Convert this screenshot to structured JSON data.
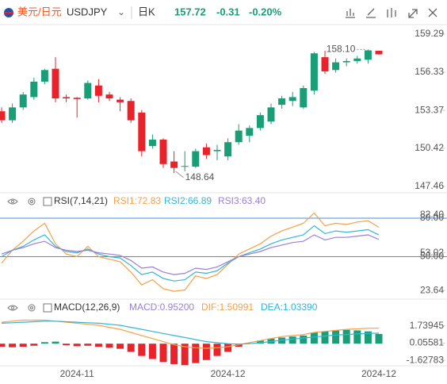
{
  "header": {
    "pair": "美元/日元",
    "symbol": "USDJPY",
    "period": "日K",
    "price": 157.72,
    "change": -0.31,
    "change_pct": "-0.20%"
  },
  "chart_data": [
    {
      "type": "candlestick",
      "categories": [
        null,
        null,
        null,
        null,
        null,
        null,
        null,
        "2024-11",
        null,
        null,
        null,
        null,
        null,
        null,
        null,
        null,
        null,
        null,
        null,
        null,
        null,
        "2024-12",
        null,
        null,
        null,
        null,
        null,
        null,
        null,
        null,
        null,
        null,
        null,
        null,
        null,
        "2024-12"
      ],
      "open": [
        153.3,
        152.6,
        153.6,
        154.4,
        155.6,
        156.6,
        154.4,
        154.35,
        154.3,
        155.3,
        154.6,
        154.2,
        154.1,
        153.2,
        150.6,
        151.1,
        149.4,
        149.0,
        149.0,
        150.5,
        150.2,
        149.8,
        150.9,
        151.4,
        152.0,
        152.5,
        153.8,
        154.1,
        153.6,
        154.9,
        157.5,
        156.5,
        157.1,
        157.2,
        157.3,
        158.0
      ],
      "high": [
        153.6,
        153.9,
        154.8,
        155.9,
        156.6,
        157.5,
        154.6,
        154.4,
        155.7,
        155.8,
        154.8,
        154.4,
        154.3,
        153.4,
        151.5,
        151.2,
        150.2,
        150.2,
        150.4,
        150.8,
        150.7,
        151.2,
        152.3,
        152.2,
        153.2,
        153.9,
        154.5,
        154.8,
        155.3,
        157.9,
        158.0,
        157.4,
        157.4,
        157.6,
        158.1,
        158.0
      ],
      "low": [
        152.4,
        152.4,
        153.4,
        154.2,
        155.4,
        154.0,
        154.0,
        152.8,
        154.2,
        154.0,
        154.1,
        153.3,
        152.4,
        149.8,
        150.4,
        148.9,
        148.5,
        148.64,
        148.9,
        149.6,
        149.5,
        149.5,
        150.7,
        150.9,
        151.8,
        152.3,
        153.5,
        153.7,
        153.5,
        154.6,
        156.2,
        156.3,
        156.8,
        157.0,
        157.0,
        157.7
      ],
      "close": [
        152.6,
        153.6,
        154.6,
        155.6,
        156.5,
        154.3,
        154.3,
        154.25,
        155.5,
        154.5,
        154.3,
        154.0,
        152.6,
        150.2,
        151.1,
        149.2,
        148.9,
        149.05,
        150.2,
        149.9,
        150.3,
        150.9,
        151.8,
        152.0,
        153.0,
        153.6,
        154.3,
        154.4,
        155.1,
        157.8,
        156.4,
        157.1,
        157.2,
        157.4,
        158.03,
        157.72
      ],
      "up_color": "#1a9e78",
      "down_color": "#e8232b",
      "ylim": [
        146.97,
        160.03
      ],
      "yticks": [
        159.29,
        156.33,
        153.37,
        150.42,
        147.46
      ],
      "high_label": {
        "value": 158.1,
        "label": "158.10"
      },
      "low_label": 148.64
    },
    {
      "type": "line",
      "title": "RSI(7,14,21)",
      "series": [
        {
          "name": "RSI1:72.83",
          "color": "#f5a04a",
          "values": [
            45,
            55,
            62,
            70,
            76,
            60,
            52,
            50,
            58,
            50,
            48,
            46,
            38,
            28,
            32,
            25,
            23,
            24,
            35,
            33,
            36,
            44,
            52,
            56,
            60,
            66,
            70,
            73,
            76,
            84,
            74,
            76,
            75,
            77,
            78,
            72.83
          ]
        },
        {
          "name": "RSI2:66.89",
          "color": "#32b6d6",
          "values": [
            50,
            55,
            58,
            63,
            67,
            58,
            54,
            53,
            56,
            52,
            50,
            49,
            43,
            36,
            38,
            33,
            31,
            32,
            38,
            37,
            39,
            45,
            50,
            53,
            56,
            60,
            63,
            65,
            67,
            74,
            68,
            70,
            69,
            70,
            71,
            66.89
          ]
        },
        {
          "name": "RSI3:63.40",
          "color": "#9b7fd6",
          "values": [
            52,
            55,
            57,
            60,
            62,
            57,
            55,
            54,
            55,
            53,
            52,
            51,
            47,
            41,
            42,
            38,
            36,
            37,
            41,
            40,
            42,
            46,
            50,
            52,
            54,
            57,
            59,
            61,
            62,
            67,
            63,
            65,
            65,
            66,
            67,
            63.4
          ]
        }
      ],
      "ylim": [
        20,
        88
      ],
      "yticks": [
        {
          "value": 82.4,
          "label": "82.40"
        },
        {
          "value": 53.02,
          "label": "53.02"
        },
        {
          "value": 23.64,
          "label": "23.64"
        }
      ],
      "reference_lines": [
        {
          "value": 80,
          "label": "80.00"
        },
        {
          "value": 50,
          "label": "50.00"
        }
      ],
      "reference_color": "#4a90d9"
    },
    {
      "type": "macd",
      "title": "MACD(12,26,9)",
      "series": [
        {
          "name": "MACD:0.95200",
          "color": "#9b7fd6",
          "values": [
            -0.3,
            -0.35,
            -0.3,
            -0.2,
            0.15,
            0.2,
            -0.15,
            -0.25,
            -0.2,
            -0.3,
            -0.4,
            -0.5,
            -0.8,
            -1.2,
            -1.5,
            -1.8,
            -2.0,
            -2.1,
            -1.9,
            -1.6,
            -1.2,
            -0.8,
            -0.3,
            0.05,
            0.3,
            0.5,
            0.6,
            0.7,
            0.8,
            1.1,
            1.2,
            1.3,
            1.35,
            1.3,
            1.2,
            0.952
          ]
        },
        {
          "name": "DIF:1.50991",
          "color": "#f5a04a",
          "values": [
            2.1,
            2.2,
            2.3,
            2.3,
            2.3,
            2.2,
            2.1,
            2.0,
            1.9,
            1.8,
            1.6,
            1.4,
            1.1,
            0.8,
            0.5,
            0.2,
            -0.1,
            -0.3,
            -0.4,
            -0.45,
            -0.4,
            -0.3,
            -0.1,
            0.1,
            0.3,
            0.5,
            0.7,
            0.8,
            0.9,
            1.1,
            1.2,
            1.3,
            1.4,
            1.45,
            1.5,
            1.50991
          ]
        },
        {
          "name": "DEA:1.03390",
          "color": "#32b6d6",
          "values": [
            2.0,
            2.05,
            2.1,
            2.15,
            2.2,
            2.2,
            2.15,
            2.1,
            2.05,
            2.0,
            1.9,
            1.8,
            1.6,
            1.4,
            1.2,
            1.0,
            0.8,
            0.6,
            0.4,
            0.2,
            0.1,
            0.0,
            -0.05,
            0.0,
            0.1,
            0.2,
            0.35,
            0.45,
            0.55,
            0.65,
            0.75,
            0.85,
            0.9,
            0.95,
            1.0,
            1.0339
          ]
        }
      ],
      "up_color": "#1a9e78",
      "down_color": "#e8232b",
      "ylim": [
        -2.16,
        2.73
      ],
      "yticks": [
        1.73945,
        0.05581,
        -1.62783
      ]
    }
  ]
}
